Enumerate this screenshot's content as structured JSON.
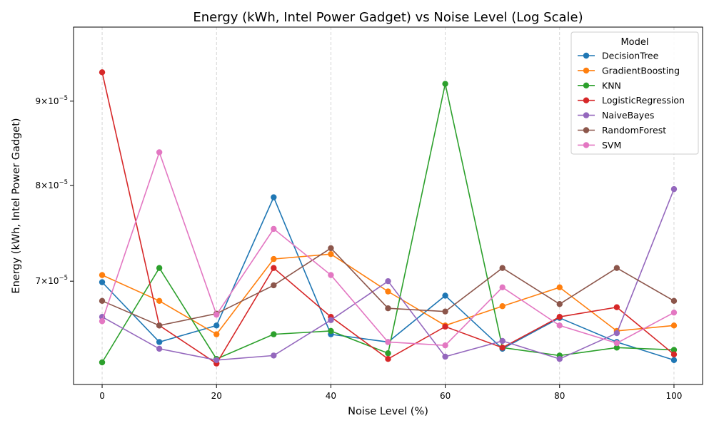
{
  "chart_data": {
    "type": "line",
    "title": "Energy (kWh, Intel Power Gadget) vs Noise Level (Log Scale)",
    "xlabel": "Noise Level (%)",
    "ylabel": "Energy (kWh, Intel Power Gadget)",
    "x": [
      0,
      10,
      20,
      30,
      40,
      50,
      60,
      70,
      80,
      90,
      100
    ],
    "xlim": [
      -5,
      105
    ],
    "xticks": [
      0,
      20,
      40,
      60,
      80,
      100
    ],
    "xtick_labels": [
      "0",
      "20",
      "40",
      "60",
      "80",
      "100"
    ],
    "yscale": "log",
    "ylim": [
      6.06e-05,
      9.98e-05
    ],
    "yticks": [
      7e-05,
      8e-05,
      9e-05
    ],
    "ytick_labels": [
      {
        "mantissa": "7",
        "exponent": "−5"
      },
      {
        "mantissa": "8",
        "exponent": "−5"
      },
      {
        "mantissa": "9",
        "exponent": "−5"
      }
    ],
    "grid": {
      "x": true,
      "y": false,
      "style": "dashed"
    },
    "legend": {
      "title": "Model",
      "position": "top-right"
    },
    "series": [
      {
        "name": "DecisionTree",
        "color": "#1f77b4",
        "values": [
          6.99e-05,
          6.43e-05,
          6.58e-05,
          7.87e-05,
          6.5e-05,
          6.43e-05,
          6.86e-05,
          6.37e-05,
          6.65e-05,
          6.43e-05,
          6.27e-05
        ]
      },
      {
        "name": "GradientBoosting",
        "color": "#ff7f0e",
        "values": [
          7.06e-05,
          6.81e-05,
          6.5e-05,
          7.22e-05,
          7.27e-05,
          6.9e-05,
          6.58e-05,
          6.76e-05,
          6.94e-05,
          6.53e-05,
          6.58e-05
        ]
      },
      {
        "name": "KNN",
        "color": "#2ca02c",
        "values": [
          6.25e-05,
          7.13e-05,
          6.28e-05,
          6.5e-05,
          6.53e-05,
          6.33e-05,
          9.22e-05,
          6.38e-05,
          6.31e-05,
          6.38e-05,
          6.36e-05
        ]
      },
      {
        "name": "LogisticRegression",
        "color": "#d62728",
        "values": [
          9.37e-05,
          6.58e-05,
          6.24e-05,
          7.13e-05,
          6.66e-05,
          6.28e-05,
          6.57e-05,
          6.38e-05,
          6.66e-05,
          6.75e-05,
          6.32e-05
        ]
      },
      {
        "name": "NaiveBayes",
        "color": "#9467bd",
        "values": [
          6.66e-05,
          6.37e-05,
          6.27e-05,
          6.31e-05,
          6.63e-05,
          7e-05,
          6.3e-05,
          6.44e-05,
          6.28e-05,
          6.51e-05,
          7.96e-05
        ]
      },
      {
        "name": "RandomForest",
        "color": "#8c564b",
        "values": [
          6.81e-05,
          6.58e-05,
          6.69e-05,
          6.96e-05,
          7.33e-05,
          6.74e-05,
          6.71e-05,
          7.13e-05,
          6.78e-05,
          7.13e-05,
          6.81e-05
        ]
      },
      {
        "name": "SVM",
        "color": "#e377c2",
        "values": [
          6.62e-05,
          8.38e-05,
          6.68e-05,
          7.53e-05,
          7.06e-05,
          6.43e-05,
          6.4e-05,
          6.94e-05,
          6.58e-05,
          6.42e-05,
          6.7e-05
        ]
      }
    ]
  }
}
